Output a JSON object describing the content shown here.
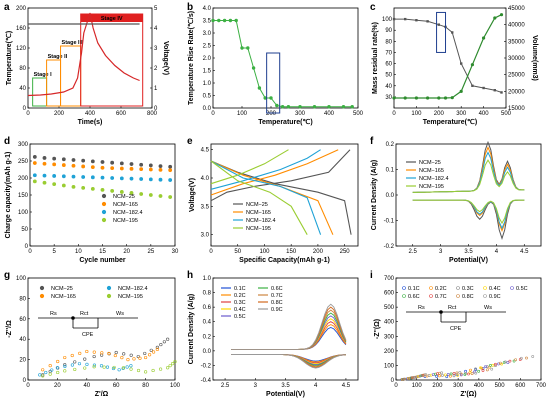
{
  "figure": {
    "panels": [
      {
        "id": "a",
        "letter": "a",
        "xlabel": "Time(s)",
        "ylabel": "Temperature(℃)",
        "y2label": "Voltage(V)"
      },
      {
        "id": "b",
        "letter": "b",
        "xlabel": "Temperature(℃)",
        "ylabel": "Temperature Rise Rate(℃/s)"
      },
      {
        "id": "c",
        "letter": "c",
        "xlabel": "Temperature(℃)",
        "ylabel": "Mass residual rate(%)",
        "y2label": "Volume(mm3)"
      },
      {
        "id": "d",
        "letter": "d",
        "xlabel": "Cycle number",
        "ylabel": "Charge capacity(mAh g-1)"
      },
      {
        "id": "e",
        "letter": "e",
        "xlabel": "Specific Capacity(mAh g-1)",
        "ylabel": "Voltage(V)"
      },
      {
        "id": "f",
        "letter": "f",
        "xlabel": "Potential(V)",
        "ylabel": "Current Density (A/g)"
      },
      {
        "id": "g",
        "letter": "g",
        "xlabel": "Z'/Ω",
        "ylabel": "-Z''/Ω"
      },
      {
        "id": "h",
        "letter": "h",
        "xlabel": "Potential(V)",
        "ylabel": "Current Density (A/g)"
      },
      {
        "id": "i",
        "letter": "i",
        "xlabel": "Z'(Ω)",
        "ylabel": "-Z''(Ω)"
      }
    ],
    "stages": [
      "Stage I",
      "Stage II",
      "Stage III",
      "Stage IV"
    ],
    "circuit": {
      "rs": "Rs",
      "rct": "Rct",
      "cpe": "CPE",
      "ws": "Ws"
    }
  },
  "chart_data": [
    {
      "id": "a",
      "type": "line",
      "x": [
        0,
        80,
        150,
        230,
        290,
        320,
        345,
        360,
        385,
        400,
        420,
        450,
        500,
        560,
        620,
        680,
        720
      ],
      "series": [
        {
          "values": [
            25,
            26,
            28,
            32,
            40,
            60,
            110,
            150,
            175,
            190,
            160,
            130,
            105,
            85,
            70,
            60,
            55
          ],
          "axis": "left",
          "color": "#d62728"
        },
        {
          "values": [
            4.2,
            4.2,
            4.2,
            4.2,
            4.2,
            4.2,
            4.2,
            4.2,
            4.2,
            4.2,
            4.2,
            4.2,
            4.2,
            4.2,
            4.2,
            4.2,
            4.2
          ],
          "axis": "right",
          "color": "#555555"
        }
      ],
      "xlim": [
        0,
        800
      ],
      "xticks": [
        0,
        200,
        400,
        600,
        800
      ],
      "ylim": [
        0,
        200
      ],
      "yticks": [
        0,
        40,
        80,
        120,
        160,
        200
      ],
      "y2lim": [
        0,
        5
      ],
      "y2ticks": [
        0,
        1,
        2,
        3,
        4,
        5
      ],
      "stage_ranges": [
        [
          30,
          120
        ],
        [
          120,
          210
        ],
        [
          210,
          340
        ],
        [
          340,
          740
        ]
      ],
      "stage_colors": [
        "#3cb043",
        "#ff8c00",
        "#ff8c00",
        "#e02020"
      ]
    },
    {
      "id": "b",
      "type": "line",
      "x": [
        0,
        20,
        40,
        60,
        80,
        100,
        120,
        140,
        160,
        180,
        200,
        220,
        240,
        260,
        300,
        350,
        400,
        450,
        480
      ],
      "series": [
        {
          "values": [
            3.5,
            3.5,
            3.5,
            3.5,
            3.5,
            2.4,
            2.4,
            1.6,
            0.8,
            0.4,
            0.4,
            0.1,
            0.05,
            0.05,
            0.05,
            0.05,
            0.05,
            0.05,
            0.05
          ],
          "color": "#3cb043"
        }
      ],
      "xlim": [
        0,
        500
      ],
      "xticks": [
        0,
        100,
        200,
        300,
        400,
        500
      ],
      "ylim": [
        0,
        4
      ],
      "yticks": [
        0.0,
        0.5,
        1.0,
        1.5,
        2.0,
        2.5,
        3.0,
        3.5,
        4.0
      ]
    },
    {
      "id": "c",
      "type": "line",
      "x": [
        0,
        50,
        100,
        150,
        200,
        230,
        260,
        300,
        350,
        400,
        450,
        480
      ],
      "series": [
        {
          "values": [
            100,
            100,
            99,
            98,
            95,
            93,
            88,
            60,
            40,
            38,
            36,
            34
          ],
          "axis": "left",
          "color": "#555555"
        },
        {
          "values": [
            18000,
            18000,
            18000,
            18000,
            18000,
            18000,
            18100,
            20000,
            28000,
            36000,
            42000,
            43000
          ],
          "axis": "right",
          "color": "#2e8b2e"
        }
      ],
      "xlim": [
        0,
        500
      ],
      "xticks": [
        0,
        100,
        200,
        300,
        400,
        500
      ],
      "ylim": [
        20,
        110
      ],
      "yticks": [
        30,
        40,
        50,
        60,
        70,
        80,
        90,
        100
      ],
      "y2lim": [
        15000,
        45000
      ],
      "y2ticks": [
        15000,
        20000,
        25000,
        30000,
        35000,
        40000,
        45000
      ]
    },
    {
      "id": "d",
      "type": "scatter",
      "x": [
        1,
        3,
        5,
        7,
        9,
        11,
        13,
        15,
        17,
        19,
        21,
        23,
        25,
        27,
        29
      ],
      "series": [
        {
          "name": "NCM−25",
          "values": [
            262,
            259,
            257,
            255,
            253,
            251,
            249,
            247,
            245,
            243,
            241,
            239,
            237,
            235,
            233
          ],
          "color": "#555555"
        },
        {
          "name": "NCM−165",
          "values": [
            244,
            242,
            240,
            238,
            236,
            234,
            232,
            230,
            229,
            228,
            227,
            226,
            225,
            224,
            223
          ],
          "color": "#ff8c00"
        },
        {
          "name": "NCM−182.4",
          "values": [
            208,
            207,
            206,
            205,
            204,
            203,
            202,
            201,
            200,
            199,
            198,
            197,
            196,
            195,
            194
          ],
          "color": "#1fa2d6"
        },
        {
          "name": "NCM−195",
          "values": [
            190,
            186,
            182,
            178,
            174,
            171,
            168,
            165,
            162,
            159,
            156,
            153,
            150,
            147,
            144
          ],
          "color": "#9acd32"
        }
      ],
      "xlim": [
        0,
        30
      ],
      "xticks": [
        0,
        5,
        10,
        15,
        20,
        25,
        30
      ],
      "ylim": [
        0,
        300
      ],
      "yticks": [
        0,
        50,
        100,
        150,
        200,
        250,
        300
      ]
    },
    {
      "id": "e",
      "type": "line",
      "series": [
        {
          "name": "NCM−25",
          "color": "#555555",
          "charge": [
            [
              0,
              3.6
            ],
            [
              30,
              3.75
            ],
            [
              80,
              3.85
            ],
            [
              150,
              3.95
            ],
            [
              220,
              4.1
            ],
            [
              260,
              4.5
            ]
          ],
          "discharge": [
            [
              0,
              4.3
            ],
            [
              50,
              4.1
            ],
            [
              120,
              3.9
            ],
            [
              200,
              3.75
            ],
            [
              250,
              3.6
            ],
            [
              262,
              3.0
            ]
          ]
        },
        {
          "name": "NCM−165",
          "color": "#ff8c00",
          "charge": [
            [
              0,
              3.7
            ],
            [
              60,
              3.9
            ],
            [
              120,
              4.05
            ],
            [
              180,
              4.25
            ],
            [
              238,
              4.5
            ]
          ],
          "discharge": [
            [
              0,
              4.3
            ],
            [
              60,
              4.05
            ],
            [
              130,
              3.85
            ],
            [
              200,
              3.6
            ],
            [
              228,
              3.0
            ]
          ]
        },
        {
          "name": "NCM−182.4",
          "color": "#1fa2d6",
          "charge": [
            [
              0,
              3.8
            ],
            [
              60,
              3.95
            ],
            [
              130,
              4.15
            ],
            [
              180,
              4.35
            ],
            [
              205,
              4.5
            ]
          ],
          "discharge": [
            [
              0,
              4.3
            ],
            [
              60,
              4.0
            ],
            [
              130,
              3.85
            ],
            [
              180,
              3.65
            ],
            [
              205,
              3.0
            ]
          ]
        },
        {
          "name": "NCM−195",
          "color": "#9acd32",
          "charge": [
            [
              0,
              3.9
            ],
            [
              50,
              4.05
            ],
            [
              100,
              4.25
            ],
            [
              145,
              4.5
            ]
          ],
          "discharge": [
            [
              0,
              4.3
            ],
            [
              50,
              3.95
            ],
            [
              110,
              3.75
            ],
            [
              150,
              3.5
            ],
            [
              180,
              3.0
            ]
          ]
        }
      ],
      "xlim": [
        0,
        275
      ],
      "xticks": [
        0,
        50,
        100,
        150,
        200,
        250
      ],
      "ylim": [
        2.8,
        4.6
      ],
      "yticks": [
        3.0,
        3.5,
        4.0,
        4.5
      ]
    },
    {
      "id": "f",
      "type": "line",
      "series": [
        {
          "name": "NCM−25",
          "color": "#555555",
          "peak": 0.19,
          "trough": -0.15
        },
        {
          "name": "NCM−165",
          "color": "#ff8c00",
          "peak": 0.17,
          "trough": -0.12
        },
        {
          "name": "NCM−182.4",
          "color": "#1fa2d6",
          "peak": 0.15,
          "trough": -0.11
        },
        {
          "name": "NCM−195",
          "color": "#9acd32",
          "peak": 0.12,
          "trough": -0.09
        }
      ],
      "xlim": [
        2.2,
        4.8
      ],
      "xticks": [
        2.5,
        3.0,
        3.5,
        4.0,
        4.5
      ],
      "ylim": [
        -0.2,
        0.2
      ],
      "yticks": [
        -0.2,
        -0.1,
        0.0,
        0.1,
        0.2
      ]
    },
    {
      "id": "g",
      "type": "scatter",
      "series": [
        {
          "name": "NCM−25",
          "color": "#555555",
          "points": [
            [
              10,
              5
            ],
            [
              25,
              15
            ],
            [
              45,
              23
            ],
            [
              60,
              27
            ],
            [
              75,
              23
            ],
            [
              88,
              32
            ],
            [
              95,
              40
            ]
          ]
        },
        {
          "name": "NCM−165",
          "color": "#ff8c00",
          "points": [
            [
              10,
              10
            ],
            [
              25,
              22
            ],
            [
              40,
              28
            ],
            [
              55,
              26
            ],
            [
              68,
              20
            ],
            [
              80,
              22
            ],
            [
              88,
              30
            ]
          ]
        },
        {
          "name": "NCM−182.4",
          "color": "#1fa2d6",
          "points": [
            [
              8,
              5
            ],
            [
              20,
              12
            ],
            [
              35,
              16
            ],
            [
              50,
              14
            ],
            [
              62,
              10
            ],
            [
              70,
              14
            ]
          ]
        },
        {
          "name": "NCM−195",
          "color": "#9acd32",
          "points": [
            [
              10,
              4
            ],
            [
              25,
              9
            ],
            [
              45,
              13
            ],
            [
              65,
              12
            ],
            [
              80,
              8
            ],
            [
              95,
              12
            ],
            [
              100,
              18
            ]
          ]
        }
      ],
      "xlim": [
        0,
        100
      ],
      "xticks": [
        0,
        20,
        40,
        60,
        80,
        100
      ],
      "ylim": [
        0,
        100
      ],
      "yticks": [
        0,
        20,
        40,
        60,
        80,
        100
      ]
    },
    {
      "id": "h",
      "type": "line",
      "series": [
        {
          "name": "0.1C",
          "color": "#1f4fd6",
          "scale": 0.3
        },
        {
          "name": "0.2C",
          "color": "#ff8c00",
          "scale": 0.34
        },
        {
          "name": "0.3C",
          "color": "#e04040",
          "scale": 0.38
        },
        {
          "name": "0.4C",
          "color": "#ffd700",
          "scale": 0.42
        },
        {
          "name": "0.5C",
          "color": "#6a5acd",
          "scale": 0.46
        },
        {
          "name": "0.6C",
          "color": "#3cb043",
          "scale": 0.5
        },
        {
          "name": "0.7C",
          "color": "#cd853f",
          "scale": 0.54
        },
        {
          "name": "0.8C",
          "color": "#d2691e",
          "scale": 0.58
        },
        {
          "name": "0.9C",
          "color": "#999999",
          "scale": 0.62
        }
      ],
      "xlim": [
        2.3,
        4.7
      ],
      "xticks": [
        2.5,
        3.0,
        3.5,
        4.0,
        4.5
      ],
      "ylim": [
        -0.4,
        1.0
      ],
      "yticks": [
        -0.4,
        -0.2,
        0.0,
        0.2,
        0.4,
        0.6,
        0.8,
        1.0
      ]
    },
    {
      "id": "i",
      "type": "scatter",
      "series": [
        {
          "name": "0.1C",
          "color": "#1f4fd6"
        },
        {
          "name": "0.2C",
          "color": "#ff8c00"
        },
        {
          "name": "0.3C",
          "color": "#888888"
        },
        {
          "name": "0.4C",
          "color": "#ffd700"
        },
        {
          "name": "0.5C",
          "color": "#6a5acd"
        },
        {
          "name": "0.6C",
          "color": "#3cb043"
        },
        {
          "name": "0.7C",
          "color": "#e04040"
        },
        {
          "name": "0.8C",
          "color": "#cd853f"
        },
        {
          "name": "0.9C",
          "color": "#999999"
        }
      ],
      "points": [
        [
          40,
          5
        ],
        [
          80,
          15
        ],
        [
          130,
          30
        ],
        [
          200,
          40
        ],
        [
          280,
          42
        ],
        [
          350,
          38
        ],
        [
          420,
          60
        ],
        [
          480,
          100
        ],
        [
          550,
          120
        ],
        [
          600,
          130
        ]
      ],
      "xlim": [
        0,
        700
      ],
      "xticks": [
        0,
        100,
        200,
        300,
        400,
        500,
        600,
        700
      ],
      "ylim": [
        0,
        700
      ],
      "yticks": [
        0,
        100,
        200,
        300,
        400,
        500,
        600,
        700
      ]
    }
  ]
}
